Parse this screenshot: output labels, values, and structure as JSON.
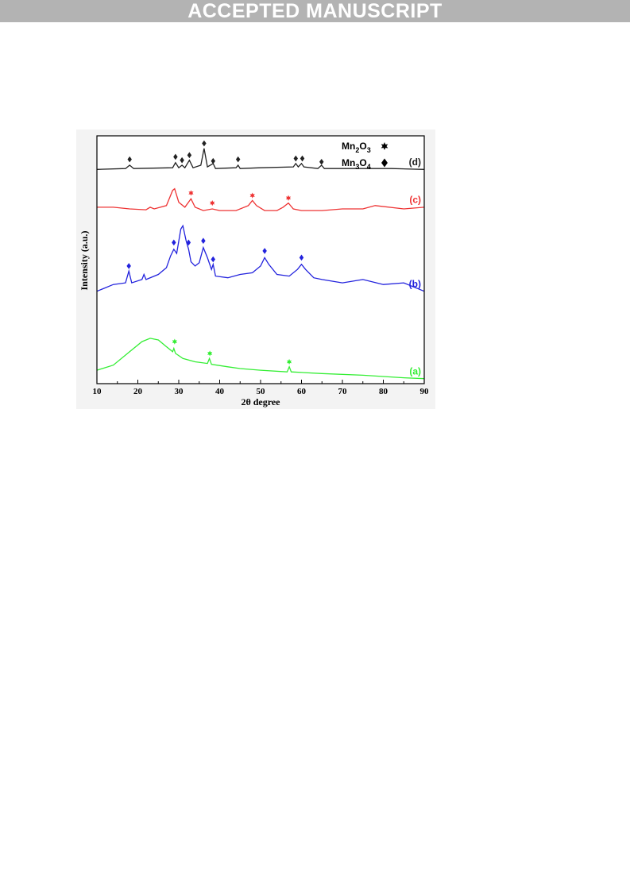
{
  "banner": {
    "text": "ACCEPTED MANUSCRIPT"
  },
  "chart_data": {
    "type": "line",
    "xlabel": "2θ degree",
    "ylabel": "Intensity (a.u.)",
    "xlim": [
      10,
      90
    ],
    "xticks": [
      10,
      20,
      30,
      40,
      50,
      60,
      70,
      80,
      90
    ],
    "grid": false,
    "legend_position": "top-right",
    "legend": [
      {
        "label_main": "Mn",
        "sub1": "2",
        "mid": "O",
        "sub2": "3",
        "marker": "star"
      },
      {
        "label_main": "Mn",
        "sub1": "3",
        "mid": "O",
        "sub2": "4",
        "marker": "diamond"
      }
    ],
    "series": [
      {
        "name": "(a)",
        "color": "#33ee33",
        "points": [
          [
            10,
            0.16
          ],
          [
            14,
            0.22
          ],
          [
            18,
            0.38
          ],
          [
            21,
            0.5
          ],
          [
            23,
            0.54
          ],
          [
            25,
            0.52
          ],
          [
            27,
            0.44
          ],
          [
            28.5,
            0.38
          ],
          [
            28.8,
            0.42
          ],
          [
            29.2,
            0.36
          ],
          [
            31,
            0.3
          ],
          [
            34,
            0.26
          ],
          [
            37,
            0.24
          ],
          [
            37.5,
            0.3
          ],
          [
            38,
            0.23
          ],
          [
            42,
            0.2
          ],
          [
            45,
            0.18
          ],
          [
            50,
            0.16
          ],
          [
            56.5,
            0.14
          ],
          [
            57,
            0.2
          ],
          [
            57.5,
            0.14
          ],
          [
            65,
            0.12
          ],
          [
            75,
            0.1
          ],
          [
            85,
            0.07
          ],
          [
            90,
            0.06
          ]
        ],
        "markers": [
          {
            "x": 29,
            "y": 0.5,
            "type": "star"
          },
          {
            "x": 37.6,
            "y": 0.36,
            "type": "star"
          },
          {
            "x": 57,
            "y": 0.26,
            "type": "star"
          }
        ]
      },
      {
        "name": "(b)",
        "color": "#2222dd",
        "points": [
          [
            10,
            1.1
          ],
          [
            14,
            1.18
          ],
          [
            17,
            1.2
          ],
          [
            17.8,
            1.34
          ],
          [
            18.5,
            1.2
          ],
          [
            21,
            1.24
          ],
          [
            21.5,
            1.3
          ],
          [
            22,
            1.24
          ],
          [
            25,
            1.3
          ],
          [
            27,
            1.38
          ],
          [
            28,
            1.52
          ],
          [
            28.8,
            1.6
          ],
          [
            29.5,
            1.55
          ],
          [
            30.5,
            1.84
          ],
          [
            31,
            1.88
          ],
          [
            31.8,
            1.7
          ],
          [
            32.4,
            1.6
          ],
          [
            33,
            1.45
          ],
          [
            34,
            1.4
          ],
          [
            35,
            1.44
          ],
          [
            36,
            1.62
          ],
          [
            37,
            1.5
          ],
          [
            38,
            1.36
          ],
          [
            38.4,
            1.42
          ],
          [
            39,
            1.28
          ],
          [
            42,
            1.26
          ],
          [
            45,
            1.3
          ],
          [
            48,
            1.32
          ],
          [
            50,
            1.4
          ],
          [
            51,
            1.5
          ],
          [
            52,
            1.42
          ],
          [
            54,
            1.3
          ],
          [
            57,
            1.28
          ],
          [
            59,
            1.36
          ],
          [
            60,
            1.42
          ],
          [
            61,
            1.36
          ],
          [
            63,
            1.26
          ],
          [
            65,
            1.24
          ],
          [
            70,
            1.2
          ],
          [
            75,
            1.24
          ],
          [
            80,
            1.18
          ],
          [
            85,
            1.2
          ],
          [
            90,
            1.1
          ]
        ],
        "markers": [
          {
            "x": 17.8,
            "y": 1.4,
            "type": "diamond"
          },
          {
            "x": 28.8,
            "y": 1.68,
            "type": "diamond"
          },
          {
            "x": 32.4,
            "y": 1.68,
            "type": "diamond"
          },
          {
            "x": 36,
            "y": 1.7,
            "type": "diamond"
          },
          {
            "x": 38.4,
            "y": 1.48,
            "type": "diamond"
          },
          {
            "x": 51,
            "y": 1.58,
            "type": "diamond"
          },
          {
            "x": 60,
            "y": 1.5,
            "type": "diamond"
          }
        ]
      },
      {
        "name": "(c)",
        "color": "#ee3333",
        "points": [
          [
            10,
            2.1
          ],
          [
            14,
            2.1
          ],
          [
            18,
            2.08
          ],
          [
            22,
            2.07
          ],
          [
            23,
            2.1
          ],
          [
            24,
            2.08
          ],
          [
            27,
            2.12
          ],
          [
            28.5,
            2.3
          ],
          [
            29,
            2.32
          ],
          [
            30,
            2.16
          ],
          [
            31.5,
            2.1
          ],
          [
            33,
            2.2
          ],
          [
            34,
            2.1
          ],
          [
            36,
            2.06
          ],
          [
            38.2,
            2.08
          ],
          [
            40,
            2.06
          ],
          [
            44,
            2.06
          ],
          [
            47,
            2.12
          ],
          [
            48,
            2.18
          ],
          [
            49,
            2.12
          ],
          [
            51,
            2.06
          ],
          [
            54,
            2.06
          ],
          [
            55.5,
            2.1
          ],
          [
            56.8,
            2.15
          ],
          [
            58,
            2.08
          ],
          [
            60,
            2.06
          ],
          [
            65,
            2.06
          ],
          [
            70,
            2.08
          ],
          [
            75,
            2.08
          ],
          [
            78,
            2.12
          ],
          [
            85,
            2.08
          ],
          [
            90,
            2.1
          ]
        ],
        "markers": [
          {
            "x": 33,
            "y": 2.27,
            "type": "star"
          },
          {
            "x": 38.2,
            "y": 2.15,
            "type": "star"
          },
          {
            "x": 48,
            "y": 2.24,
            "type": "star"
          },
          {
            "x": 56.8,
            "y": 2.21,
            "type": "star"
          }
        ]
      },
      {
        "name": "(d)",
        "color": "#222222",
        "points": [
          [
            10,
            2.55
          ],
          [
            17,
            2.56
          ],
          [
            18,
            2.6
          ],
          [
            19,
            2.56
          ],
          [
            28.5,
            2.57
          ],
          [
            29.2,
            2.63
          ],
          [
            30,
            2.57
          ],
          [
            30.8,
            2.6
          ],
          [
            31.5,
            2.57
          ],
          [
            32.6,
            2.66
          ],
          [
            33.5,
            2.57
          ],
          [
            35.4,
            2.6
          ],
          [
            36.2,
            2.8
          ],
          [
            37,
            2.58
          ],
          [
            38.4,
            2.62
          ],
          [
            39,
            2.56
          ],
          [
            44,
            2.57
          ],
          [
            44.5,
            2.6
          ],
          [
            45,
            2.56
          ],
          [
            50,
            2.57
          ],
          [
            58,
            2.58
          ],
          [
            58.6,
            2.62
          ],
          [
            59.2,
            2.58
          ],
          [
            60,
            2.62
          ],
          [
            60.6,
            2.58
          ],
          [
            64,
            2.56
          ],
          [
            64.9,
            2.6
          ],
          [
            65.6,
            2.56
          ],
          [
            75,
            2.56
          ],
          [
            82,
            2.56
          ],
          [
            90,
            2.55
          ]
        ],
        "markers": [
          {
            "x": 18,
            "y": 2.67,
            "type": "diamond"
          },
          {
            "x": 29.2,
            "y": 2.7,
            "type": "diamond"
          },
          {
            "x": 30.8,
            "y": 2.66,
            "type": "diamond"
          },
          {
            "x": 32.6,
            "y": 2.72,
            "type": "diamond"
          },
          {
            "x": 36.2,
            "y": 2.86,
            "type": "diamond"
          },
          {
            "x": 38.4,
            "y": 2.65,
            "type": "diamond"
          },
          {
            "x": 44.5,
            "y": 2.67,
            "type": "diamond"
          },
          {
            "x": 58.6,
            "y": 2.68,
            "type": "diamond"
          },
          {
            "x": 60.2,
            "y": 2.68,
            "type": "diamond"
          },
          {
            "x": 64.9,
            "y": 2.64,
            "type": "diamond"
          }
        ]
      }
    ]
  }
}
